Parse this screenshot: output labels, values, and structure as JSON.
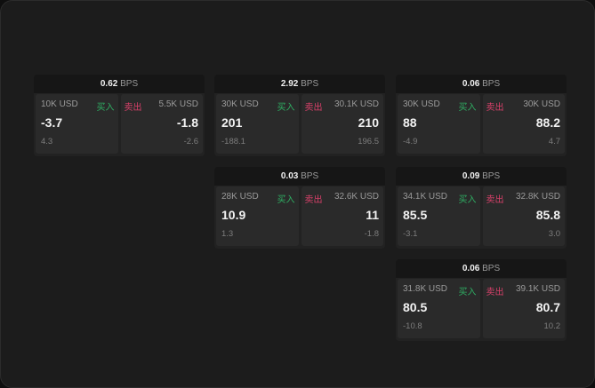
{
  "unit": "BPS",
  "buy_label": "买入",
  "sell_label": "卖出",
  "colors": {
    "buy": "#2fae63",
    "sell": "#d8406a",
    "background": "#1c1c1c"
  },
  "cards": [
    {
      "spread": "0.62",
      "buy": {
        "qty": "10K USD",
        "price": "-3.7",
        "change": "4.3"
      },
      "sell": {
        "qty": "5.5K USD",
        "price": "-1.8",
        "change": "-2.6"
      }
    },
    {
      "spread": "2.92",
      "buy": {
        "qty": "30K USD",
        "price": "201",
        "change": "-188.1"
      },
      "sell": {
        "qty": "30.1K USD",
        "price": "210",
        "change": "196.5"
      }
    },
    {
      "spread": "0.06",
      "buy": {
        "qty": "30K USD",
        "price": "88",
        "change": "-4.9"
      },
      "sell": {
        "qty": "30K USD",
        "price": "88.2",
        "change": "4.7"
      }
    },
    {
      "spread": "0.03",
      "buy": {
        "qty": "28K USD",
        "price": "10.9",
        "change": "1.3"
      },
      "sell": {
        "qty": "32.6K USD",
        "price": "11",
        "change": "-1.8"
      }
    },
    {
      "spread": "0.09",
      "buy": {
        "qty": "34.1K USD",
        "price": "85.5",
        "change": "-3.1"
      },
      "sell": {
        "qty": "32.8K USD",
        "price": "85.8",
        "change": "3.0"
      }
    },
    {
      "spread": "0.06",
      "buy": {
        "qty": "31.8K USD",
        "price": "80.5",
        "change": "-10.8"
      },
      "sell": {
        "qty": "39.1K USD",
        "price": "80.7",
        "change": "10.2"
      }
    }
  ]
}
